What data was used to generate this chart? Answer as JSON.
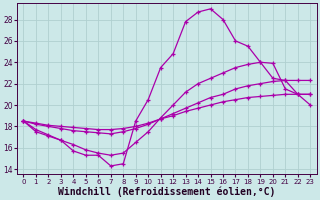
{
  "background_color": "#cce8e8",
  "grid_color": "#b0d0d0",
  "line_color": "#aa00aa",
  "xlabel": "Windchill (Refroidissement éolien,°C)",
  "xlabel_fontsize": 7,
  "ylim": [
    13.5,
    29.5
  ],
  "xlim": [
    -0.5,
    23.5
  ],
  "yticks": [
    14,
    16,
    18,
    20,
    22,
    24,
    26,
    28
  ],
  "xticks": [
    0,
    1,
    2,
    3,
    4,
    5,
    6,
    7,
    8,
    9,
    10,
    11,
    12,
    13,
    14,
    15,
    16,
    17,
    18,
    19,
    20,
    21,
    22,
    23
  ],
  "line1_x": [
    0,
    1,
    2,
    3,
    4,
    5,
    6,
    7,
    8,
    9,
    10,
    11,
    12,
    13,
    14,
    15,
    16,
    17,
    18,
    19,
    20,
    21,
    22,
    23
  ],
  "line1_y": [
    18.5,
    17.5,
    17.1,
    16.7,
    15.7,
    15.3,
    15.3,
    14.3,
    14.5,
    18.5,
    20.5,
    23.5,
    24.8,
    27.8,
    28.7,
    29.0,
    28.0,
    26.0,
    25.5,
    24.0,
    22.5,
    22.3,
    21.0,
    20.0
  ],
  "line2_x": [
    0,
    1,
    2,
    3,
    4,
    5,
    6,
    7,
    8,
    9,
    10,
    11,
    12,
    13,
    14,
    15,
    16,
    17,
    18,
    19,
    20,
    21,
    22,
    23
  ],
  "line2_y": [
    18.5,
    17.7,
    17.2,
    16.7,
    16.3,
    15.8,
    15.5,
    15.3,
    15.5,
    16.5,
    17.5,
    18.8,
    20.0,
    21.2,
    22.0,
    22.5,
    23.0,
    23.5,
    23.8,
    24.0,
    23.9,
    21.5,
    21.0,
    21.0
  ],
  "line3_x": [
    0,
    1,
    2,
    3,
    4,
    5,
    6,
    7,
    8,
    9,
    10,
    11,
    12,
    13,
    14,
    15,
    16,
    17,
    18,
    19,
    20,
    21,
    22,
    23
  ],
  "line3_y": [
    18.5,
    18.2,
    18.0,
    17.8,
    17.6,
    17.5,
    17.4,
    17.3,
    17.5,
    17.8,
    18.2,
    18.7,
    19.2,
    19.7,
    20.2,
    20.7,
    21.0,
    21.5,
    21.8,
    22.0,
    22.2,
    22.3,
    22.3,
    22.3
  ],
  "line4_x": [
    0,
    1,
    2,
    3,
    4,
    5,
    6,
    7,
    8,
    9,
    10,
    11,
    12,
    13,
    14,
    15,
    16,
    17,
    18,
    19,
    20,
    21,
    22,
    23
  ],
  "line4_y": [
    18.5,
    18.3,
    18.1,
    18.0,
    17.9,
    17.8,
    17.7,
    17.7,
    17.8,
    18.0,
    18.3,
    18.7,
    19.0,
    19.4,
    19.7,
    20.0,
    20.3,
    20.5,
    20.7,
    20.8,
    20.9,
    21.0,
    21.0,
    21.0
  ]
}
